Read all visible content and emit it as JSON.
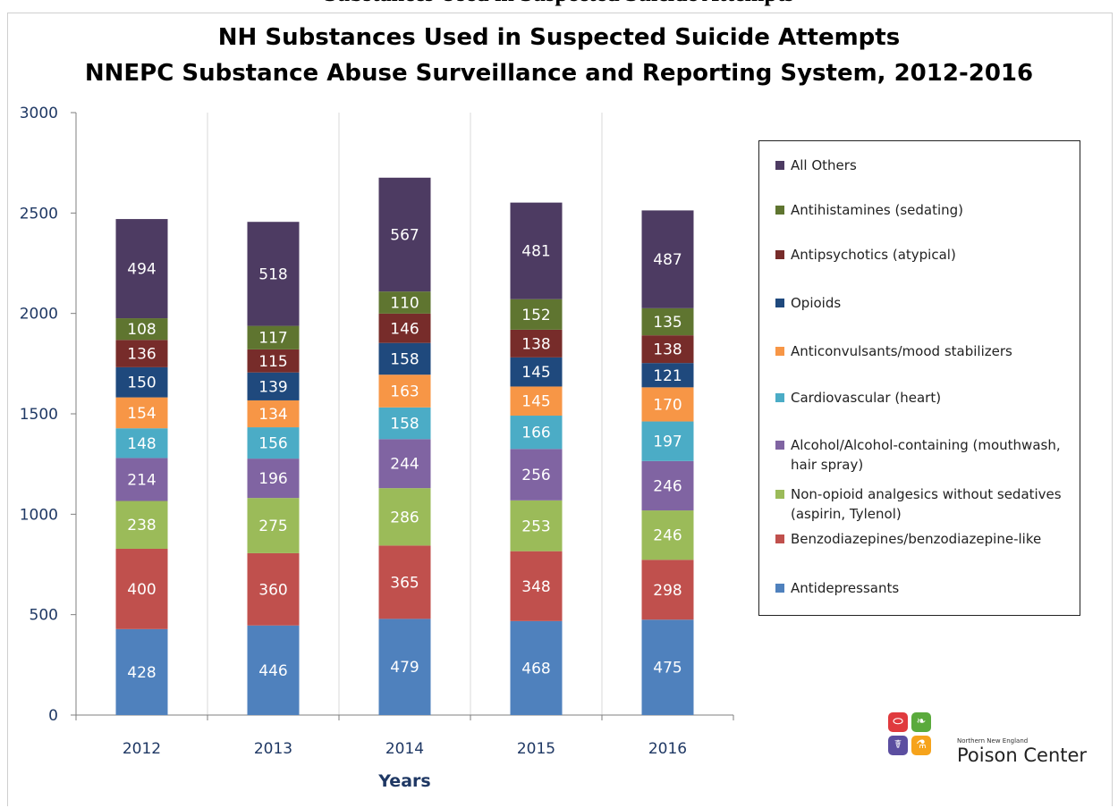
{
  "page": {
    "clipped_heading": "Substances Used in Suspected Suicide Attempts"
  },
  "chart_data": {
    "type": "bar",
    "stacked": true,
    "title_lines": [
      "NH Substances Used in Suspected Suicide Attempts",
      "NNEPC Substance Abuse Surveillance and Reporting System, 2012-2016"
    ],
    "xlabel": "Years",
    "ylabel": "",
    "ylim": [
      0,
      3000
    ],
    "yticks": [
      0,
      500,
      1000,
      1500,
      2000,
      2500,
      3000
    ],
    "categories": [
      "2012",
      "2013",
      "2014",
      "2015",
      "2016"
    ],
    "grid": "vertical separators between categories",
    "legend_position": "right",
    "series": [
      {
        "name": "Antidepressants",
        "color": "#4f81bd",
        "values": [
          428,
          446,
          479,
          468,
          475
        ]
      },
      {
        "name": "Benzodiazepines/benzodiazepine-like",
        "color": "#c0504d",
        "values": [
          400,
          360,
          365,
          348,
          298
        ]
      },
      {
        "name": "Non-opioid analgesics without sedatives (aspirin, Tylenol)",
        "color": "#9bbb59",
        "values": [
          238,
          275,
          286,
          253,
          246
        ]
      },
      {
        "name": "Alcohol/Alcohol-containing (mouthwash, hair spray)",
        "color": "#8064a2",
        "values": [
          214,
          196,
          244,
          256,
          246
        ]
      },
      {
        "name": "Cardiovascular (heart)",
        "color": "#4bacc6",
        "values": [
          148,
          156,
          158,
          166,
          197
        ]
      },
      {
        "name": "Anticonvulsants/mood stabilizers",
        "color": "#f79646",
        "values": [
          154,
          134,
          163,
          145,
          170
        ]
      },
      {
        "name": "Opioids",
        "color": "#1f497d",
        "values": [
          150,
          139,
          158,
          145,
          121
        ]
      },
      {
        "name": "Antipsychotics (atypical)",
        "color": "#772c2a",
        "values": [
          136,
          115,
          146,
          138,
          138
        ]
      },
      {
        "name": "Antihistamines (sedating)",
        "color": "#5f7530",
        "values": [
          108,
          117,
          110,
          152,
          135
        ]
      },
      {
        "name": "All Others",
        "color": "#4d3b62",
        "values": [
          494,
          518,
          567,
          481,
          487
        ]
      }
    ],
    "legend_order": [
      "All Others",
      "Antihistamines (sedating)",
      "Antipsychotics (atypical)",
      "Opioids",
      "Anticonvulsants/mood stabilizers",
      "Cardiovascular (heart)",
      "Alcohol/Alcohol-containing (mouthwash, hair spray)",
      "Non-opioid analgesics without sedatives (aspirin, Tylenol)",
      "Benzodiazepines/benzodiazepine-like",
      "Antidepressants"
    ]
  },
  "logo": {
    "small_text": "Northern New England",
    "big_text": "Poison Center",
    "icon_names": [
      "pill-icon",
      "leaf-icon",
      "snake-staff-icon",
      "flask-icon"
    ],
    "colors": [
      "#e03a3e",
      "#5aaa3c",
      "#5b4ea0",
      "#f6a31b"
    ]
  }
}
